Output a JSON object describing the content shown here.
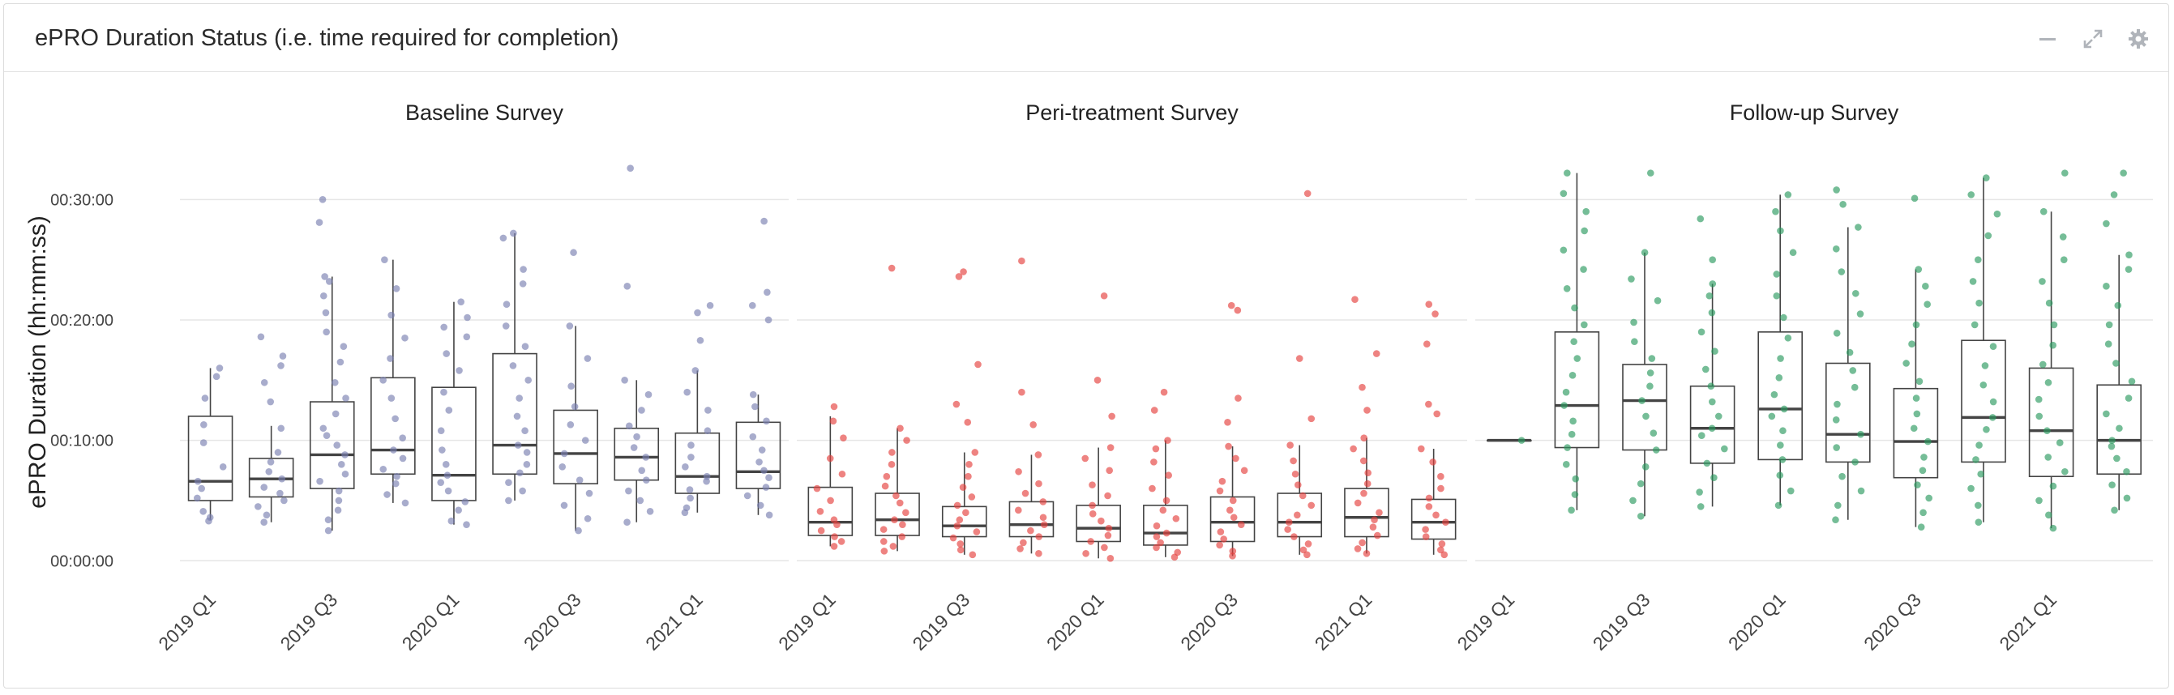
{
  "header": {
    "title": "ePRO Duration Status (i.e. time required for completion)"
  },
  "toolbar": {
    "icons": [
      "minimize-icon",
      "expand-icon",
      "gear-icon"
    ]
  },
  "chart_data": {
    "type": "box",
    "ylabel": "ePRO Duration (hh:mm:ss)",
    "y_unit": "minutes",
    "ylim": [
      -2,
      35
    ],
    "y_ticks": [
      {
        "value": 0,
        "label": "00:00:00"
      },
      {
        "value": 10,
        "label": "00:10:00"
      },
      {
        "value": 20,
        "label": "00:20:00"
      },
      {
        "value": 30,
        "label": "00:30:00"
      }
    ],
    "categories": [
      "2019 Q1",
      "2019 Q2",
      "2019 Q3",
      "2019 Q4",
      "2020 Q1",
      "2020 Q2",
      "2020 Q3",
      "2020 Q4",
      "2021 Q1",
      "2021 Q2"
    ],
    "x_tick_labels": [
      "2019 Q1",
      "2019 Q3",
      "2020 Q1",
      "2020 Q3",
      "2021 Q1"
    ],
    "panels": [
      {
        "title": "Baseline Survey",
        "color": "#7a7fb0",
        "boxes": [
          {
            "category": "2019 Q1",
            "q1": 5.0,
            "median": 6.6,
            "q3": 12.0,
            "whisker_low": 3.4,
            "whisker_high": 16.0,
            "points": [
              3.3,
              3.6,
              4.1,
              5.2,
              6.0,
              6.6,
              7.8,
              9.8,
              11.3,
              13.5,
              15.3,
              16.0
            ]
          },
          {
            "category": "2019 Q2",
            "q1": 5.3,
            "median": 6.8,
            "q3": 8.5,
            "whisker_low": 3.2,
            "whisker_high": 11.2,
            "points": [
              3.2,
              3.8,
              4.5,
              5.0,
              5.6,
              6.1,
              6.8,
              7.4,
              8.2,
              9.0,
              11.0,
              13.2,
              14.8,
              16.2,
              17.0,
              18.6
            ]
          },
          {
            "category": "2019 Q3",
            "q1": 6.0,
            "median": 8.8,
            "q3": 13.2,
            "whisker_low": 2.5,
            "whisker_high": 23.6,
            "points": [
              2.5,
              3.4,
              4.2,
              5.0,
              5.8,
              6.6,
              7.2,
              8.0,
              8.8,
              9.6,
              10.4,
              11.0,
              12.2,
              13.5,
              14.8,
              16.5,
              17.8,
              19.0,
              20.6,
              22.0,
              23.2,
              23.6,
              28.1,
              30.0
            ]
          },
          {
            "category": "2019 Q4",
            "q1": 7.2,
            "median": 9.2,
            "q3": 15.2,
            "whisker_low": 4.8,
            "whisker_high": 25.0,
            "points": [
              4.8,
              5.5,
              6.4,
              7.0,
              7.6,
              8.5,
              9.2,
              10.2,
              11.8,
              13.5,
              15.0,
              16.8,
              18.5,
              20.4,
              22.6,
              25.0
            ]
          },
          {
            "category": "2020 Q1",
            "q1": 5.0,
            "median": 7.1,
            "q3": 14.4,
            "whisker_low": 3.0,
            "whisker_high": 21.5,
            "points": [
              3.0,
              3.3,
              4.2,
              4.9,
              5.8,
              6.5,
              7.1,
              8.0,
              9.2,
              10.8,
              12.5,
              14.0,
              15.8,
              17.2,
              18.6,
              19.4,
              20.2,
              21.5
            ]
          },
          {
            "category": "2020 Q2",
            "q1": 7.2,
            "median": 9.6,
            "q3": 17.2,
            "whisker_low": 5.0,
            "whisker_high": 27.2,
            "points": [
              5.0,
              5.8,
              6.5,
              7.3,
              8.0,
              9.0,
              9.6,
              10.8,
              12.0,
              13.5,
              15.0,
              16.2,
              17.8,
              19.5,
              21.3,
              23.0,
              24.2,
              26.8,
              27.2
            ]
          },
          {
            "category": "2020 Q3",
            "q1": 6.4,
            "median": 8.9,
            "q3": 12.5,
            "whisker_low": 2.5,
            "whisker_high": 19.5,
            "points": [
              2.5,
              3.5,
              4.6,
              5.6,
              6.7,
              7.8,
              8.9,
              10.0,
              11.3,
              12.8,
              14.5,
              16.8,
              19.5,
              25.6
            ]
          },
          {
            "category": "2020 Q4",
            "q1": 6.7,
            "median": 8.6,
            "q3": 11.0,
            "whisker_low": 3.2,
            "whisker_high": 15.0,
            "points": [
              3.2,
              4.1,
              5.0,
              5.8,
              6.7,
              7.5,
              8.6,
              9.4,
              10.3,
              11.2,
              12.5,
              13.8,
              15.0,
              22.8,
              32.6
            ]
          },
          {
            "category": "2021 Q1",
            "q1": 5.6,
            "median": 7.0,
            "q3": 10.6,
            "whisker_low": 4.0,
            "whisker_high": 15.8,
            "points": [
              4.0,
              4.4,
              5.2,
              5.9,
              6.6,
              7.0,
              7.8,
              8.6,
              9.6,
              10.8,
              12.5,
              14.0,
              15.8,
              18.3,
              20.6,
              21.2
            ]
          },
          {
            "category": "2021 Q2",
            "q1": 6.0,
            "median": 7.4,
            "q3": 11.5,
            "whisker_low": 3.8,
            "whisker_high": 13.8,
            "points": [
              3.8,
              4.6,
              5.4,
              6.1,
              6.9,
              7.5,
              8.2,
              9.2,
              10.3,
              11.6,
              12.8,
              13.8,
              20.0,
              21.2,
              22.3,
              28.2
            ]
          }
        ]
      },
      {
        "title": "Peri-treatment Survey",
        "color": "#e5413d",
        "boxes": [
          {
            "category": "2019 Q1",
            "q1": 2.1,
            "median": 3.2,
            "q3": 6.1,
            "whisker_low": 1.2,
            "whisker_high": 12.0,
            "points": [
              1.2,
              1.6,
              2.0,
              2.5,
              3.0,
              3.4,
              4.1,
              5.0,
              6.0,
              7.2,
              8.5,
              10.2,
              11.6,
              12.8
            ]
          },
          {
            "category": "2019 Q2",
            "q1": 2.1,
            "median": 3.4,
            "q3": 5.6,
            "whisker_low": 0.8,
            "whisker_high": 11.0,
            "points": [
              0.8,
              1.2,
              1.6,
              2.0,
              2.6,
              3.0,
              3.4,
              4.0,
              4.8,
              5.4,
              6.2,
              7.0,
              8.0,
              9.0,
              10.0,
              11.0,
              24.3
            ]
          },
          {
            "category": "2019 Q3",
            "q1": 2.0,
            "median": 2.9,
            "q3": 4.5,
            "whisker_low": 0.5,
            "whisker_high": 9.0,
            "points": [
              0.5,
              0.9,
              1.4,
              1.9,
              2.4,
              2.9,
              3.4,
              4.0,
              4.6,
              5.3,
              6.1,
              7.0,
              8.0,
              9.0,
              11.5,
              13.0,
              16.3,
              23.6,
              24.0
            ]
          },
          {
            "category": "2019 Q4",
            "q1": 2.0,
            "median": 3.0,
            "q3": 4.9,
            "whisker_low": 0.6,
            "whisker_high": 8.8,
            "points": [
              0.6,
              1.0,
              1.5,
              2.0,
              2.5,
              3.0,
              3.6,
              4.2,
              4.9,
              5.6,
              6.4,
              7.4,
              8.8,
              11.3,
              14.0,
              24.9
            ]
          },
          {
            "category": "2020 Q1",
            "q1": 1.6,
            "median": 2.7,
            "q3": 4.6,
            "whisker_low": 0.2,
            "whisker_high": 9.4,
            "points": [
              0.2,
              0.6,
              1.1,
              1.6,
              2.1,
              2.7,
              3.3,
              3.9,
              4.6,
              5.4,
              6.3,
              7.5,
              8.5,
              9.4,
              12.0,
              15.0,
              22.0
            ]
          },
          {
            "category": "2020 Q2",
            "q1": 1.3,
            "median": 2.3,
            "q3": 4.6,
            "whisker_low": 0.3,
            "whisker_high": 10.0,
            "points": [
              0.3,
              0.7,
              1.1,
              1.5,
              2.0,
              2.3,
              2.9,
              3.5,
              4.2,
              5.0,
              6.0,
              7.1,
              8.2,
              9.3,
              10.0,
              12.5,
              14.0
            ]
          },
          {
            "category": "2020 Q3",
            "q1": 1.6,
            "median": 3.2,
            "q3": 5.3,
            "whisker_low": 0.4,
            "whisker_high": 9.5,
            "points": [
              0.4,
              0.8,
              1.3,
              1.8,
              2.4,
              3.0,
              3.6,
              4.2,
              5.0,
              5.8,
              6.6,
              7.5,
              8.5,
              9.5,
              11.5,
              13.5,
              20.8,
              21.2
            ]
          },
          {
            "category": "2020 Q4",
            "q1": 2.0,
            "median": 3.2,
            "q3": 5.6,
            "whisker_low": 0.5,
            "whisker_high": 9.6,
            "points": [
              0.5,
              0.9,
              1.4,
              2.0,
              2.6,
              3.2,
              3.8,
              4.6,
              5.4,
              6.3,
              7.2,
              8.3,
              9.6,
              11.8,
              16.8,
              30.5
            ]
          },
          {
            "category": "2021 Q1",
            "q1": 2.0,
            "median": 3.6,
            "q3": 6.0,
            "whisker_low": 0.6,
            "whisker_high": 10.2,
            "points": [
              0.6,
              1.0,
              1.5,
              2.1,
              2.8,
              3.4,
              4.0,
              4.8,
              5.6,
              6.4,
              7.3,
              8.3,
              9.3,
              10.2,
              12.5,
              14.4,
              17.2,
              21.7
            ]
          },
          {
            "category": "2021 Q2",
            "q1": 1.8,
            "median": 3.2,
            "q3": 5.1,
            "whisker_low": 0.5,
            "whisker_high": 9.3,
            "points": [
              0.5,
              0.9,
              1.4,
              2.0,
              2.6,
              3.2,
              3.8,
              4.5,
              5.2,
              6.0,
              7.0,
              8.2,
              9.3,
              12.2,
              13.0,
              18.0,
              20.5,
              21.3
            ]
          }
        ]
      },
      {
        "title": "Follow-up Survey",
        "color": "#2b9a5f",
        "boxes": [
          {
            "category": "2019 Q1",
            "q1": 10.0,
            "median": 10.0,
            "q3": 10.0,
            "whisker_low": 10.0,
            "whisker_high": 10.0,
            "points": [
              10.0
            ]
          },
          {
            "category": "2019 Q2",
            "q1": 9.4,
            "median": 12.9,
            "q3": 19.0,
            "whisker_low": 4.2,
            "whisker_high": 32.2,
            "points": [
              4.2,
              5.5,
              6.8,
              8.0,
              9.4,
              10.5,
              11.6,
              12.9,
              14.0,
              15.4,
              16.8,
              18.2,
              19.6,
              21.0,
              22.6,
              24.2,
              25.8,
              27.4,
              29.0,
              30.5,
              32.2
            ]
          },
          {
            "category": "2019 Q3",
            "q1": 9.2,
            "median": 13.3,
            "q3": 16.3,
            "whisker_low": 3.7,
            "whisker_high": 25.6,
            "points": [
              3.7,
              5.0,
              6.4,
              7.8,
              9.2,
              10.6,
              12.0,
              13.3,
              14.5,
              15.6,
              16.8,
              18.2,
              19.8,
              21.6,
              23.4,
              25.6,
              32.2
            ]
          },
          {
            "category": "2019 Q4",
            "q1": 8.1,
            "median": 11.0,
            "q3": 14.5,
            "whisker_low": 4.5,
            "whisker_high": 23.0,
            "points": [
              4.5,
              5.7,
              6.9,
              8.1,
              9.3,
              10.4,
              11.0,
              12.0,
              13.2,
              14.5,
              15.9,
              17.4,
              19.0,
              20.6,
              22.0,
              23.0,
              25.0,
              28.4
            ]
          },
          {
            "category": "2020 Q1",
            "q1": 8.4,
            "median": 12.6,
            "q3": 19.0,
            "whisker_low": 4.6,
            "whisker_high": 30.4,
            "points": [
              4.6,
              5.8,
              7.1,
              8.4,
              9.6,
              10.8,
              12.0,
              12.6,
              13.8,
              15.2,
              16.8,
              18.5,
              20.2,
              22.0,
              23.8,
              25.6,
              27.4,
              29.0,
              30.4
            ]
          },
          {
            "category": "2020 Q2",
            "q1": 8.2,
            "median": 10.5,
            "q3": 16.4,
            "whisker_low": 3.4,
            "whisker_high": 27.7,
            "points": [
              3.4,
              4.6,
              5.8,
              7.0,
              8.2,
              9.4,
              10.5,
              11.7,
              13.0,
              14.4,
              15.8,
              17.3,
              18.9,
              20.5,
              22.2,
              24.0,
              25.9,
              27.7,
              29.6,
              30.8
            ]
          },
          {
            "category": "2020 Q3",
            "q1": 6.9,
            "median": 9.9,
            "q3": 14.3,
            "whisker_low": 2.8,
            "whisker_high": 24.2,
            "points": [
              2.8,
              4.0,
              5.2,
              6.3,
              7.5,
              8.6,
              9.9,
              11.0,
              12.2,
              13.5,
              14.9,
              16.4,
              18.0,
              19.6,
              21.3,
              22.8,
              24.2,
              30.1
            ]
          },
          {
            "category": "2020 Q4",
            "q1": 8.2,
            "median": 11.9,
            "q3": 18.3,
            "whisker_low": 3.2,
            "whisker_high": 31.8,
            "points": [
              3.2,
              4.6,
              6.0,
              7.2,
              8.4,
              9.6,
              10.9,
              11.9,
              13.2,
              14.6,
              16.2,
              17.8,
              19.6,
              21.4,
              23.2,
              25.0,
              27.0,
              28.8,
              30.4,
              31.8
            ]
          },
          {
            "category": "2021 Q1",
            "q1": 7.0,
            "median": 10.8,
            "q3": 16.0,
            "whisker_low": 2.7,
            "whisker_high": 29.0,
            "points": [
              2.7,
              3.8,
              5.0,
              6.2,
              7.4,
              8.6,
              9.8,
              10.8,
              12.0,
              13.4,
              14.8,
              16.3,
              17.9,
              19.6,
              21.4,
              23.2,
              25.0,
              26.9,
              29.0,
              32.2
            ]
          },
          {
            "category": "2021 Q2",
            "q1": 7.2,
            "median": 10.0,
            "q3": 14.6,
            "whisker_low": 4.2,
            "whisker_high": 25.4,
            "points": [
              4.2,
              5.2,
              6.3,
              7.4,
              8.5,
              9.5,
              10.0,
              11.0,
              12.2,
              13.5,
              14.9,
              16.4,
              18.0,
              19.6,
              21.2,
              22.8,
              24.2,
              25.4,
              28.0,
              30.4,
              32.2
            ]
          }
        ]
      }
    ]
  }
}
